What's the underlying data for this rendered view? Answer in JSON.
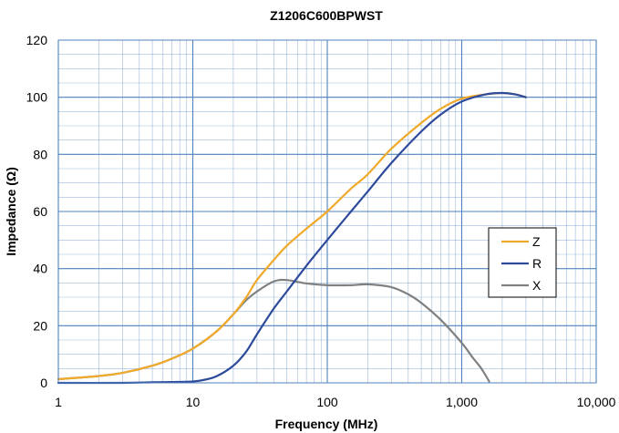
{
  "chart_data": {
    "type": "line",
    "title": "Z1206C600BPWST",
    "xlabel": "Frequency (MHz)",
    "ylabel": "Impedance (Ω)",
    "xscale": "log",
    "xlim": [
      1,
      10000
    ],
    "ylim": [
      0,
      120
    ],
    "x_ticks": [
      1,
      10,
      100,
      1000,
      10000
    ],
    "x_tick_labels": [
      "1",
      "10",
      "100",
      "1,000",
      "10,000"
    ],
    "y_ticks": [
      0,
      20,
      40,
      60,
      80,
      100,
      120
    ],
    "y_tick_labels": [
      "0",
      "20",
      "40",
      "60",
      "80",
      "100",
      "120"
    ],
    "grid": true,
    "legend_position": "right",
    "colors": {
      "grid": "#4f81bd",
      "Z": "#f0a928",
      "R": "#2d4a9b",
      "X": "#808080"
    },
    "series": [
      {
        "name": "Z",
        "x": [
          1,
          2,
          3,
          5,
          7,
          10,
          15,
          20,
          25,
          30,
          40,
          50,
          70,
          100,
          150,
          200,
          300,
          500,
          700,
          1000,
          1500,
          2000,
          2500,
          3000
        ],
        "y": [
          1.3,
          2.4,
          3.5,
          6,
          8.5,
          12,
          18,
          24,
          30,
          36,
          43,
          48,
          54,
          60,
          68,
          73,
          82,
          91,
          96,
          99.5,
          101,
          101.5,
          101,
          100
        ]
      },
      {
        "name": "R",
        "x": [
          1,
          3,
          5,
          7,
          10,
          12,
          15,
          20,
          25,
          30,
          40,
          50,
          70,
          100,
          150,
          200,
          300,
          500,
          700,
          1000,
          1500,
          2000,
          2500,
          3000
        ],
        "y": [
          0,
          0,
          0.2,
          0.3,
          0.5,
          1,
          2.3,
          6,
          11,
          17,
          26,
          32,
          41,
          50,
          60,
          67,
          77,
          88,
          94,
          98.5,
          101,
          101.5,
          101,
          100
        ]
      },
      {
        "name": "X",
        "x": [
          1,
          2,
          3,
          5,
          7,
          10,
          15,
          20,
          25,
          30,
          40,
          50,
          70,
          100,
          150,
          200,
          300,
          400,
          500,
          700,
          1000,
          1200,
          1400,
          1600
        ],
        "y": [
          1.3,
          2.4,
          3.5,
          6,
          8.5,
          12,
          18,
          24,
          29,
          32,
          35.5,
          36,
          34.8,
          34.2,
          34.2,
          34.5,
          33.5,
          31,
          28,
          22,
          14,
          9,
          5,
          0.5
        ]
      }
    ]
  }
}
